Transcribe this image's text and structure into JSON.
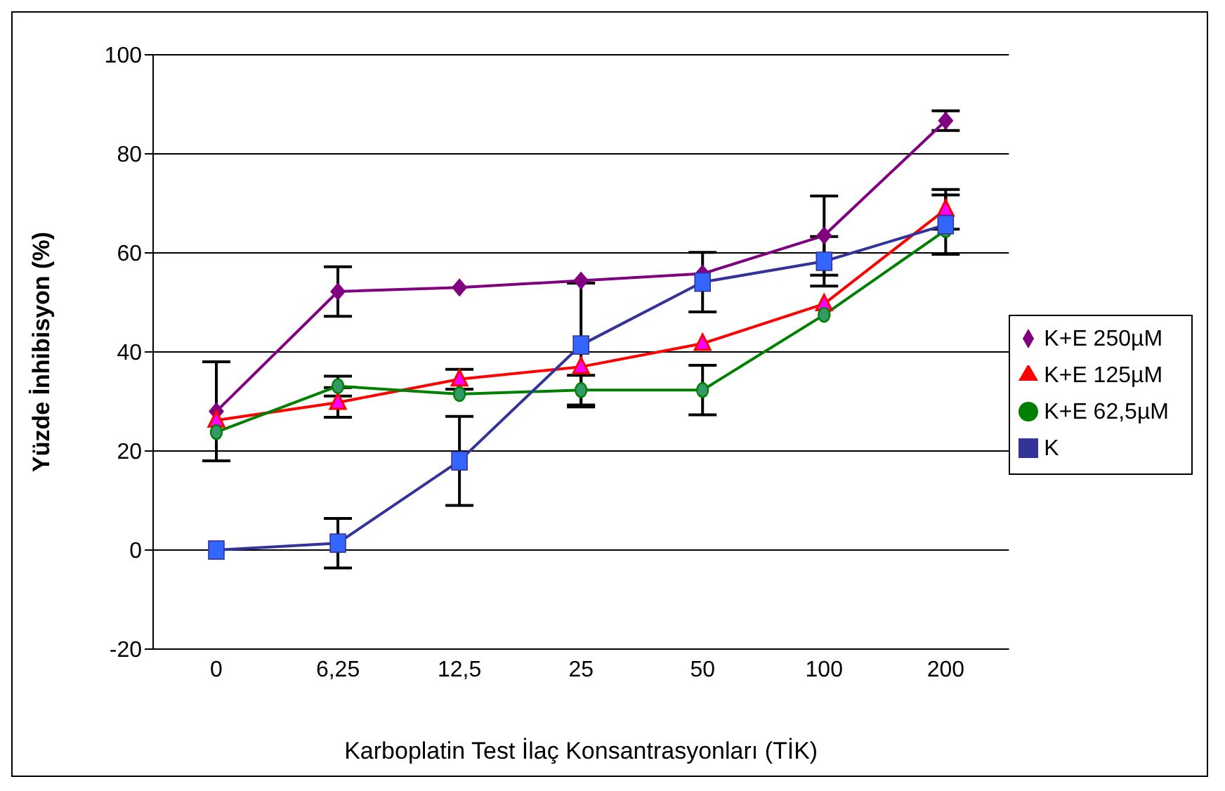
{
  "chart_data": {
    "type": "line",
    "xlabel": "Karboplatin Test İlaç Konsantrasyonları (TİK)",
    "ylabel": "Yüzde İnhibisyon (%)",
    "categories": [
      "0",
      "6,25",
      "12,5",
      "25",
      "50",
      "100",
      "200"
    ],
    "series": [
      {
        "name": "K+E 250µM",
        "color": "#800080",
        "marker": "diamond",
        "values": [
          28,
          52.2,
          53,
          54.4,
          55.8,
          63.5,
          86.7
        ],
        "errors": [
          10,
          5,
          null,
          null,
          null,
          8,
          2
        ]
      },
      {
        "name": "K+E 125µM",
        "color": "#ff0000",
        "marker": "triangle",
        "values": [
          26.2,
          29.8,
          34.5,
          37,
          41.7,
          49.7,
          68.8
        ],
        "errors": [
          null,
          3,
          2,
          null,
          null,
          null,
          4
        ]
      },
      {
        "name": "K+E 62,5µM",
        "color": "#008000",
        "marker": "circle",
        "values": [
          23.8,
          33.1,
          31.5,
          32.3,
          32.3,
          47.5,
          64.6
        ],
        "errors": [
          null,
          2,
          null,
          3,
          5,
          null,
          null
        ]
      },
      {
        "name": "K",
        "color": "#333399",
        "marker": "square",
        "values": [
          0,
          1.4,
          18,
          41.4,
          54.1,
          58.3,
          65.7
        ],
        "errors": [
          null,
          5,
          9,
          12.5,
          6,
          5,
          6
        ]
      }
    ],
    "ylim": [
      -20,
      100
    ],
    "yticks": [
      -20,
      0,
      20,
      40,
      60,
      80,
      100
    ],
    "grid": "y",
    "legend": "right"
  }
}
